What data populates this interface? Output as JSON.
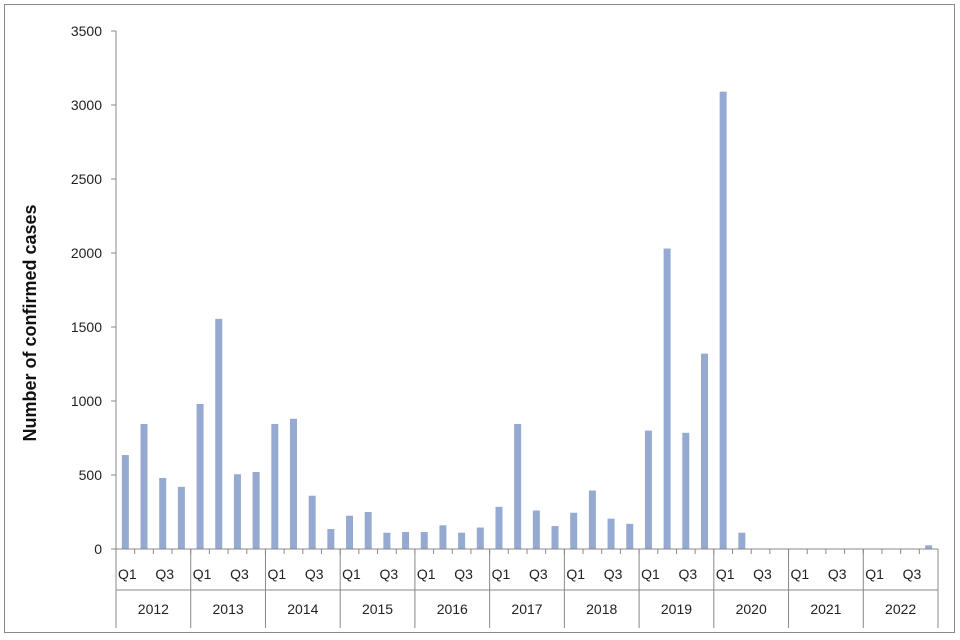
{
  "chart_data": {
    "type": "bar",
    "ylabel": "Number of confirmed cases",
    "xlabel": "",
    "ylim": [
      0,
      3500
    ],
    "yticks": [
      0,
      500,
      1000,
      1500,
      2000,
      2500,
      3000,
      3500
    ],
    "bar_color": "#95a9d1",
    "grid": false,
    "years": [
      "2012",
      "2013",
      "2014",
      "2015",
      "2016",
      "2017",
      "2018",
      "2019",
      "2020",
      "2021",
      "2022"
    ],
    "quarter_labels": [
      "Q1",
      "",
      "Q3",
      ""
    ],
    "series": [
      {
        "values": [
          635,
          845,
          480,
          420,
          980,
          1555,
          505,
          520,
          845,
          880,
          360,
          135,
          225,
          250,
          110,
          115,
          115,
          160,
          110,
          145,
          285,
          845,
          260,
          155,
          245,
          395,
          205,
          170,
          800,
          2030,
          785,
          1320,
          3090,
          110,
          0,
          0,
          0,
          0,
          0,
          0,
          0,
          0,
          0,
          25
        ]
      }
    ]
  }
}
